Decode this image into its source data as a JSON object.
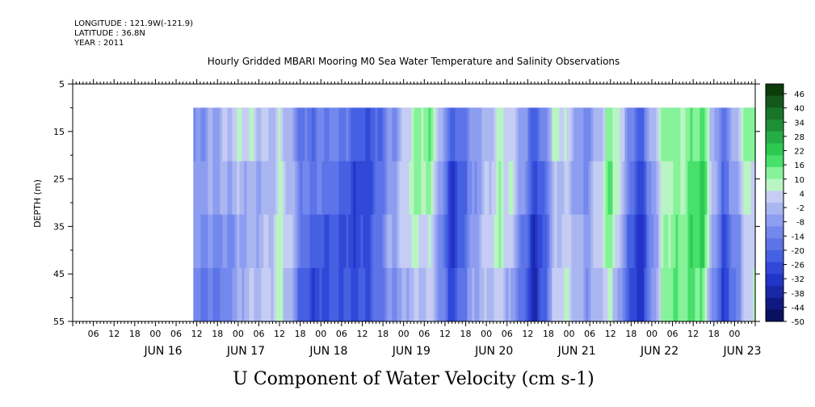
{
  "header": {
    "longitude": "LONGITUDE : 121.9W(-121.9)",
    "latitude": "LATITUDE : 36.8N",
    "year": "YEAR : 2011"
  },
  "chart_data": {
    "type": "heatmap",
    "title": "Hourly Gridded MBARI Mooring M0 Sea Water Temperature and Salinity Observations",
    "xlabel": "U Component of Water Velocity (cm s-1)",
    "ylabel": "DEPTH (m)",
    "ylim": [
      55,
      5
    ],
    "y_ticks": [
      5,
      15,
      25,
      35,
      45,
      55
    ],
    "y_data_range": [
      10,
      55
    ],
    "x_hour_ticks": [
      "06",
      "12",
      "18",
      "00",
      "06",
      "12",
      "18",
      "00",
      "06",
      "12",
      "18",
      "00",
      "06",
      "12",
      "18",
      "00",
      "06",
      "12",
      "18",
      "00",
      "06",
      "12",
      "18",
      "00",
      "06",
      "12",
      "18",
      "00",
      "06",
      "12",
      "18",
      "00"
    ],
    "x_day_labels": [
      "JUN 16",
      "JUN 17",
      "JUN 18",
      "JUN 19",
      "JUN 20",
      "JUN 21",
      "JUN 22",
      "JUN 23"
    ],
    "x_range_hours": "2011-06-15 00:00 to 2011-06-23 06:00",
    "data_start": "2011-06-16 11:00",
    "colorbar": {
      "labels": [
        "46",
        "40",
        "34",
        "28",
        "22",
        "16",
        "10",
        "4",
        "-2",
        "-8",
        "-14",
        "-20",
        "-26",
        "-32",
        "-38",
        "-44",
        "-50"
      ],
      "colors": [
        "#0b3d0b",
        "#12591a",
        "#19752a",
        "#1f8f37",
        "#24ad44",
        "#2bc950",
        "#46e06a",
        "#86f29a",
        "#b9f5c2",
        "#c5cdf4",
        "#aab6f0",
        "#8d9df0",
        "#7288ec",
        "#5c74e8",
        "#4560e2",
        "#3148d8",
        "#2235c8",
        "#1a28a8",
        "#0f1a80",
        "#0a1060"
      ]
    },
    "velocity_profile": [
      {
        "time": "2011-06-16 12:00",
        "u": -12
      },
      {
        "time": "2011-06-16 20:00",
        "u": -4
      },
      {
        "time": "2011-06-17 06:00",
        "u": 2
      },
      {
        "time": "2011-06-17 12:00",
        "u": 6
      },
      {
        "time": "2011-06-17 18:00",
        "u": -16
      },
      {
        "time": "2011-06-18 06:00",
        "u": -20
      },
      {
        "time": "2011-06-18 15:00",
        "u": -22
      },
      {
        "time": "2011-06-18 20:00",
        "u": -8
      },
      {
        "time": "2011-06-19 02:00",
        "u": 8
      },
      {
        "time": "2011-06-19 08:00",
        "u": 6
      },
      {
        "time": "2011-06-19 14:00",
        "u": -24
      },
      {
        "time": "2011-06-19 20:00",
        "u": -8
      },
      {
        "time": "2011-06-20 04:00",
        "u": 10
      },
      {
        "time": "2011-06-20 14:00",
        "u": -28
      },
      {
        "time": "2011-06-20 20:00",
        "u": 6
      },
      {
        "time": "2011-06-21 04:00",
        "u": -6
      },
      {
        "time": "2011-06-21 12:00",
        "u": 10
      },
      {
        "time": "2011-06-21 20:00",
        "u": -26
      },
      {
        "time": "2011-06-22 04:00",
        "u": 14
      },
      {
        "time": "2011-06-22 14:00",
        "u": 18
      },
      {
        "time": "2011-06-22 20:00",
        "u": -20
      },
      {
        "time": "2011-06-23 04:00",
        "u": 8
      }
    ]
  }
}
